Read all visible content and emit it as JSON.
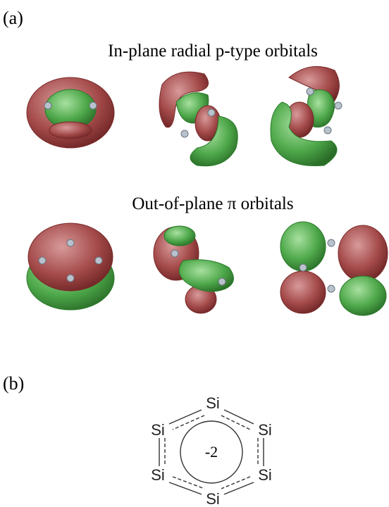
{
  "panel_a": {
    "label": "(a)",
    "rows": [
      {
        "title": "In-plane radial p-type orbitals"
      },
      {
        "title": "Out-of-plane π orbitals"
      }
    ]
  },
  "panel_b": {
    "label": "(b)",
    "atoms": [
      "Si",
      "Si",
      "Si",
      "Si",
      "Si",
      "Si"
    ],
    "charge": "-2"
  }
}
